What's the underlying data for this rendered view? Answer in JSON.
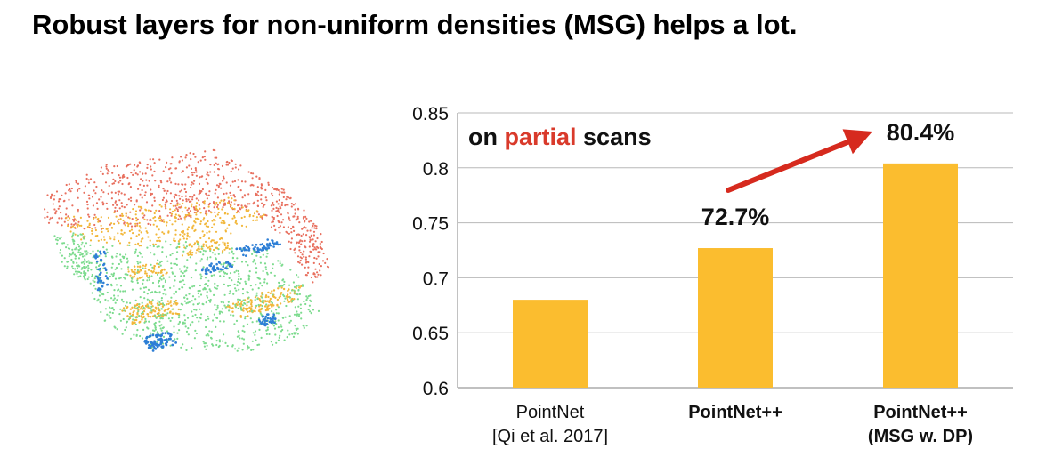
{
  "slide": {
    "title": "Robust layers for non-uniform densities (MSG) helps a lot."
  },
  "point_cloud": {
    "colors": [
      "#e8705f",
      "#f2b73a",
      "#7cdb8e",
      "#2e7fd6"
    ]
  },
  "chart_data": {
    "type": "bar",
    "categories": [
      [
        "PointNet",
        "[Qi et al. 2017]"
      ],
      [
        "PointNet++"
      ],
      [
        "PointNet++",
        "(MSG w. DP)"
      ]
    ],
    "category_bold": [
      false,
      true,
      true
    ],
    "values": [
      0.68,
      0.727,
      0.804
    ],
    "data_labels": [
      "",
      "72.7%",
      "80.4%"
    ],
    "ylim": [
      0.6,
      0.85
    ],
    "yticks": [
      "0.6",
      "0.65",
      "0.7",
      "0.75",
      "0.8",
      "0.85"
    ],
    "grid": true,
    "bar_color": "#fbbd2f",
    "annotation": {
      "parts": [
        {
          "text": "on ",
          "color": "#111111"
        },
        {
          "text": "partial",
          "color": "#d93a2b"
        },
        {
          "text": " scans",
          "color": "#111111"
        }
      ]
    },
    "arrow_color": "#d62a1e"
  }
}
